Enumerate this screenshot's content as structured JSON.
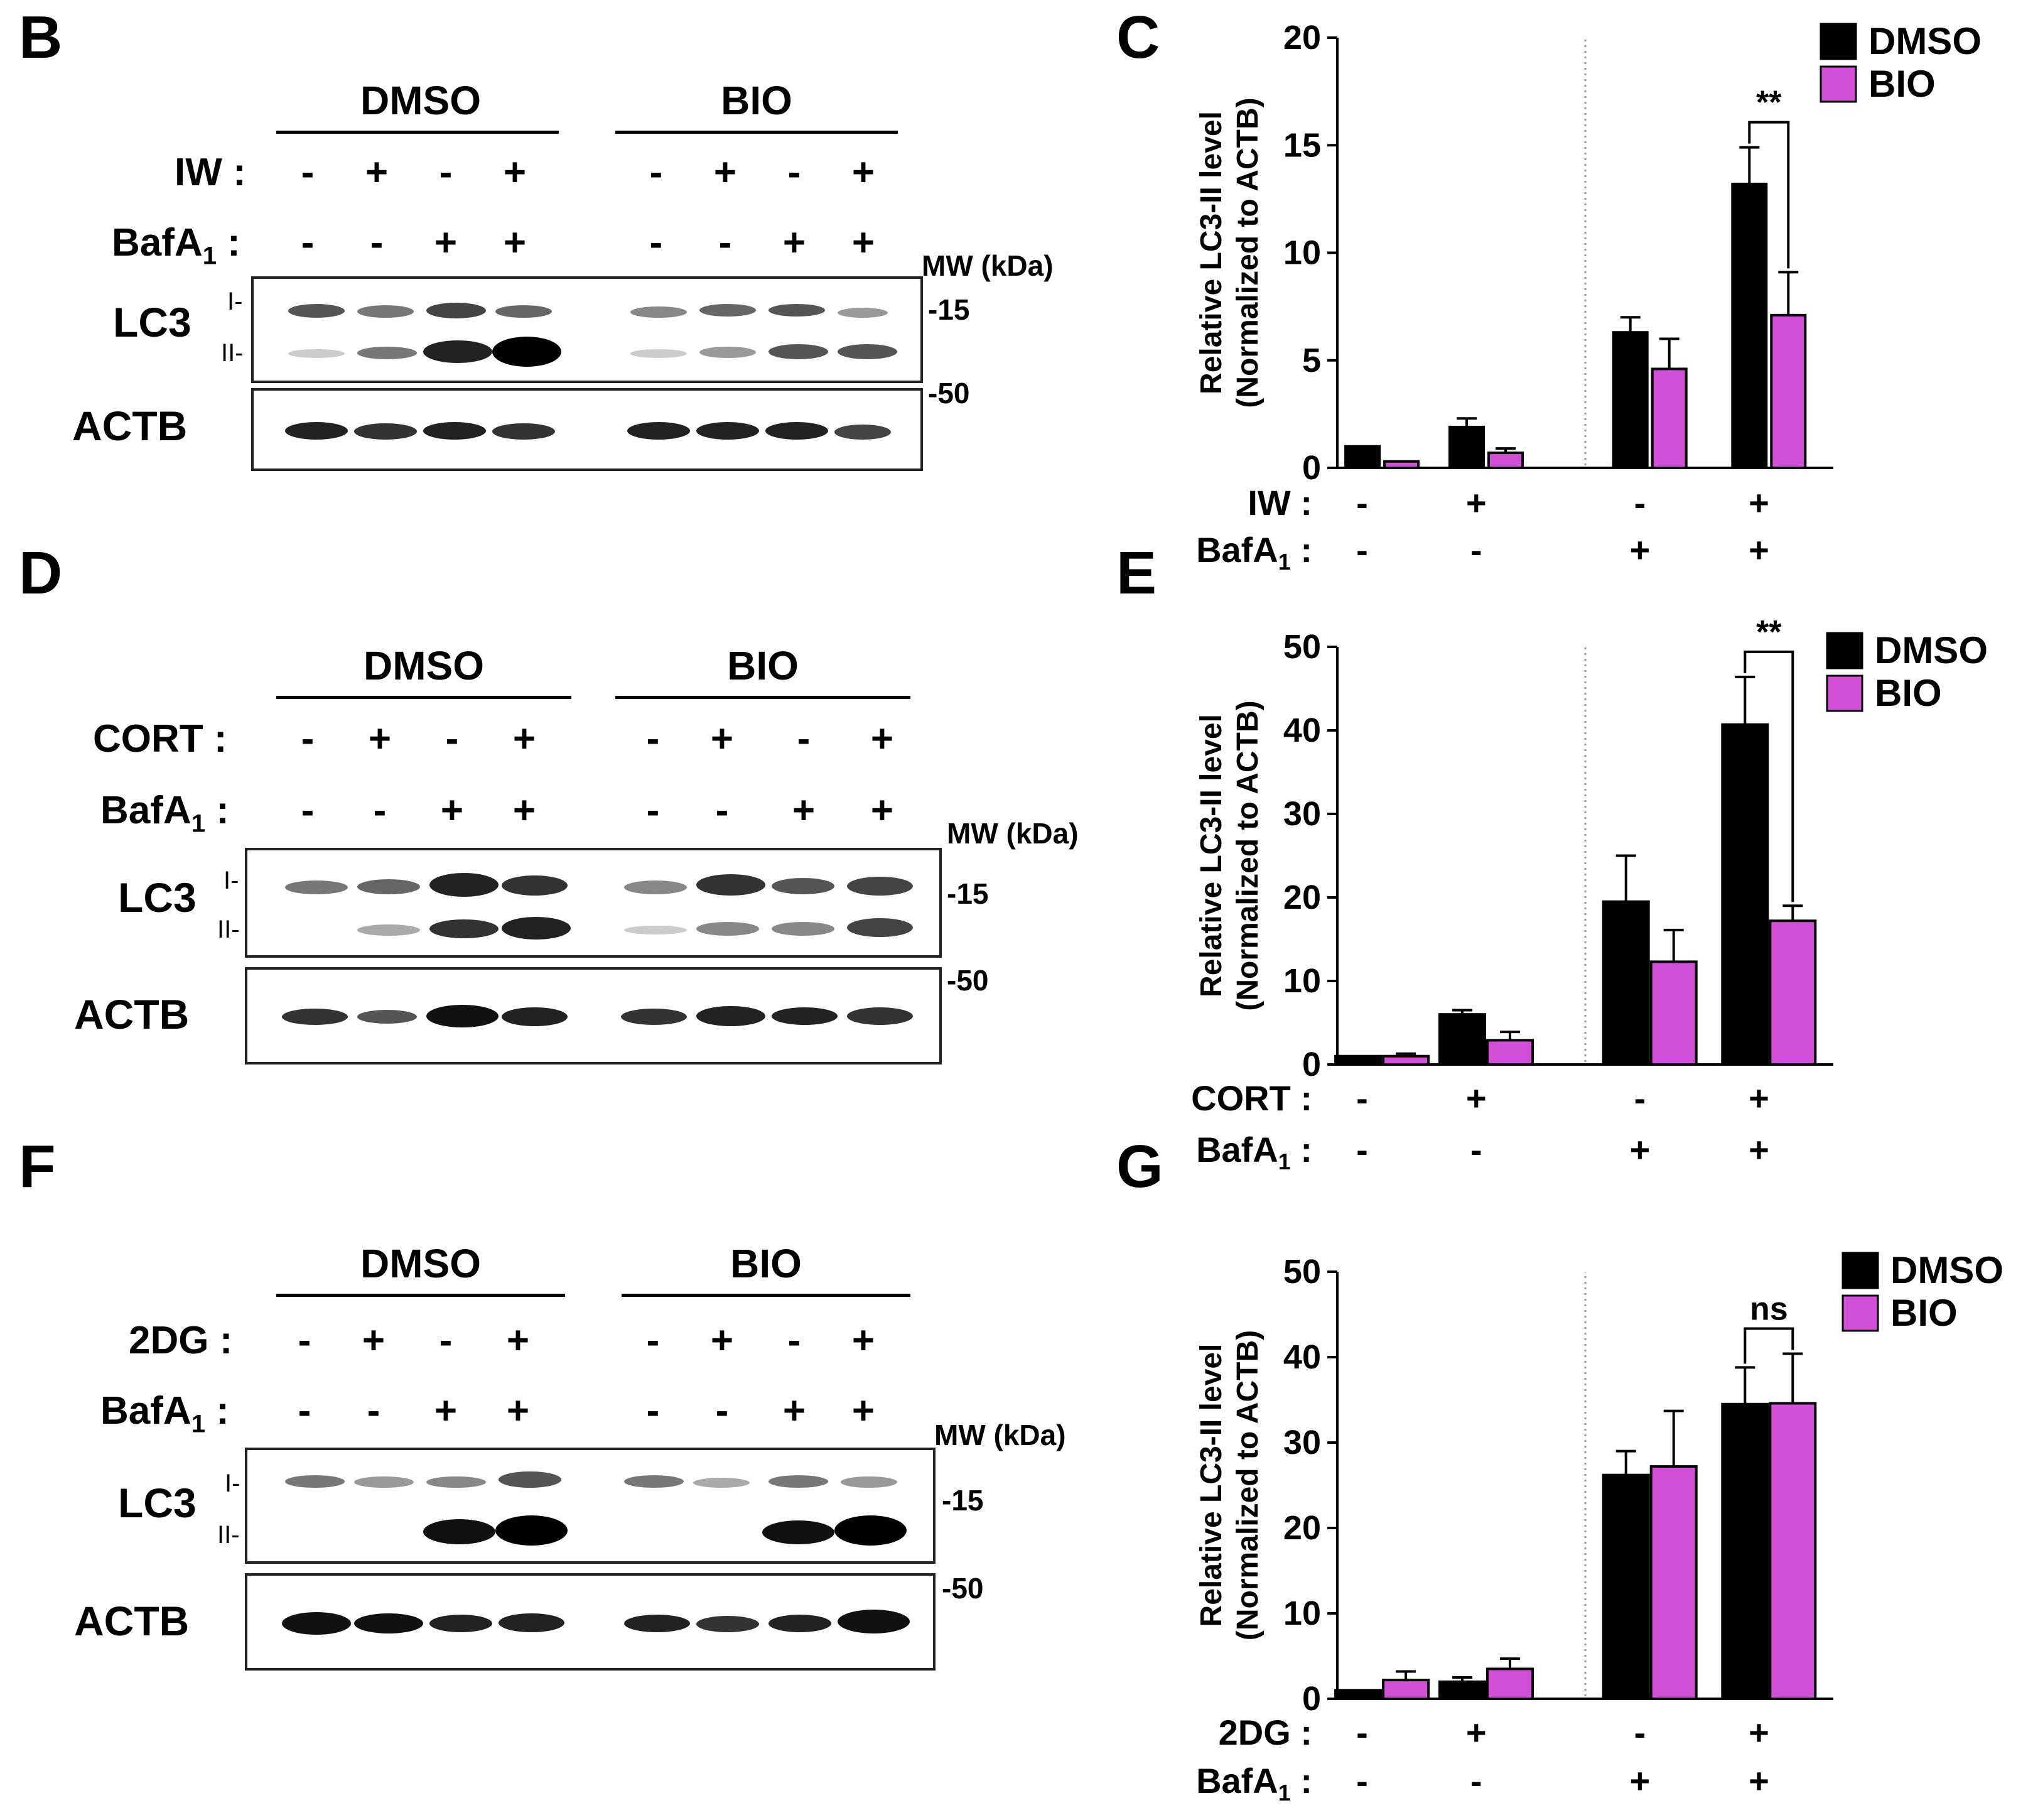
{
  "panels": {
    "B": "B",
    "C": "C",
    "D": "D",
    "E": "E",
    "F": "F",
    "G": "G"
  },
  "blots": [
    {
      "groups": [
        "DMSO",
        "BIO"
      ],
      "treatment": "IW :",
      "bafa": "BafA",
      "bafa_sub": "1",
      "colon": ":",
      "treatment_signs": [
        "-",
        "+",
        "-",
        "+",
        "-",
        "+",
        "-",
        "+"
      ],
      "bafa_signs": [
        "-",
        "-",
        "+",
        "+",
        "-",
        "-",
        "+",
        "+"
      ],
      "mw_label": "MW (kDa)",
      "lc3": "LC3",
      "lc3_i": "I-",
      "lc3_ii": "II-",
      "actb": "ACTB",
      "mw15": "-15",
      "mw50": "-50"
    },
    {
      "groups": [
        "DMSO",
        "BIO"
      ],
      "treatment": "CORT :",
      "bafa": "BafA",
      "bafa_sub": "1",
      "colon": ":",
      "treatment_signs": [
        "-",
        "+",
        "-",
        "+",
        "-",
        "+",
        "-",
        "+"
      ],
      "bafa_signs": [
        "-",
        "-",
        "+",
        "+",
        "-",
        "-",
        "+",
        "+"
      ],
      "mw_label": "MW (kDa)",
      "lc3": "LC3",
      "lc3_i": "I-",
      "lc3_ii": "II-",
      "actb": "ACTB",
      "mw15": "-15",
      "mw50": "-50"
    },
    {
      "groups": [
        "DMSO",
        "BIO"
      ],
      "treatment": "2DG :",
      "bafa": "BafA",
      "bafa_sub": "1",
      "colon": ":",
      "treatment_signs": [
        "-",
        "+",
        "-",
        "+",
        "-",
        "+",
        "-",
        "+"
      ],
      "bafa_signs": [
        "-",
        "-",
        "+",
        "+",
        "-",
        "-",
        "+",
        "+"
      ],
      "mw_label": "MW (kDa)",
      "lc3": "LC3",
      "lc3_i": "I-",
      "lc3_ii": "II-",
      "actb": "ACTB",
      "mw15": "-15",
      "mw50": "-50"
    }
  ],
  "colors": {
    "dmso": "#000000",
    "bio": "#d24fd8"
  },
  "chart_data": [
    {
      "type": "bar",
      "ylabel": [
        "Relative LC3-II level",
        "(Normalized to ACTB)"
      ],
      "ylim": [
        0,
        20
      ],
      "yticks": [
        0,
        5,
        10,
        15,
        20
      ],
      "legend": "top-right",
      "series": [
        {
          "name": "DMSO",
          "values": [
            1.0,
            1.9,
            6.3,
            13.2
          ],
          "errors": [
            0,
            0.4,
            0.7,
            1.7
          ]
        },
        {
          "name": "BIO",
          "values": [
            0.3,
            0.7,
            4.6,
            7.1
          ],
          "errors": [
            0,
            0.2,
            1.4,
            2.0
          ]
        }
      ],
      "treatment": "IW :",
      "bafa": "BafA",
      "bafa_sub": "1",
      "colon": ":",
      "treatment_signs": [
        "-",
        "+",
        "-",
        "+"
      ],
      "bafa_signs": [
        "-",
        "-",
        "+",
        "+"
      ],
      "annotation": {
        "text": "**",
        "category": 3
      }
    },
    {
      "type": "bar",
      "ylabel": [
        "Relative LC3-II level",
        "(Normalized to ACTB)"
      ],
      "ylim": [
        0,
        50
      ],
      "yticks": [
        0,
        10,
        20,
        30,
        40,
        50
      ],
      "legend": "top-right",
      "series": [
        {
          "name": "DMSO",
          "values": [
            1.0,
            6.0,
            19.5,
            40.7
          ],
          "errors": [
            0,
            0.5,
            5.5,
            5.7
          ]
        },
        {
          "name": "BIO",
          "values": [
            1.0,
            2.9,
            12.3,
            17.2
          ],
          "errors": [
            0.3,
            1.0,
            3.8,
            1.8
          ]
        }
      ],
      "treatment": "CORT :",
      "bafa": "BafA",
      "bafa_sub": "1",
      "colon": ":",
      "treatment_signs": [
        "-",
        "+",
        "-",
        "+"
      ],
      "bafa_signs": [
        "-",
        "-",
        "+",
        "+"
      ],
      "annotation": {
        "text": "**",
        "category": 3
      }
    },
    {
      "type": "bar",
      "ylabel": [
        "Relative LC3-II level",
        "(Normalized to ACTB)"
      ],
      "ylim": [
        0,
        50
      ],
      "yticks": [
        0,
        10,
        20,
        30,
        40,
        50
      ],
      "legend": "top-right",
      "series": [
        {
          "name": "DMSO",
          "values": [
            1.0,
            2.0,
            26.2,
            34.5
          ],
          "errors": [
            0,
            0.5,
            2.8,
            4.3
          ]
        },
        {
          "name": "BIO",
          "values": [
            2.2,
            3.5,
            27.2,
            34.6
          ],
          "errors": [
            1.0,
            1.2,
            6.5,
            5.8
          ]
        }
      ],
      "treatment": "2DG :",
      "bafa": "BafA",
      "bafa_sub": "1",
      "colon": ":",
      "treatment_signs": [
        "-",
        "+",
        "-",
        "+"
      ],
      "bafa_signs": [
        "-",
        "-",
        "+",
        "+"
      ],
      "annotation": {
        "text": "ns",
        "category": 3
      }
    }
  ]
}
